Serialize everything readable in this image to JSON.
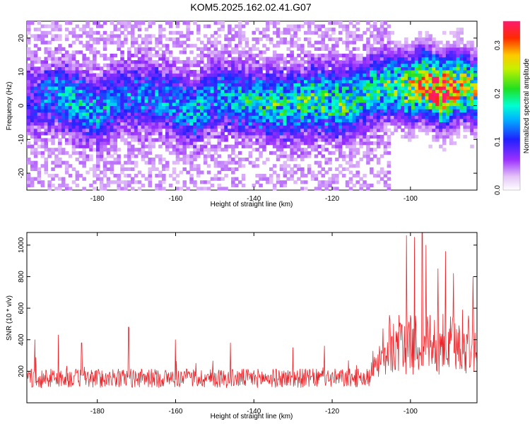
{
  "title": "KOM5.2025.162.02.41.G07",
  "colors": {
    "snr_line": "#e8262b",
    "frame": "#000000",
    "background": "#ffffff"
  },
  "chart_data": [
    {
      "type": "heatmap",
      "title": "KOM5.2025.162.02.41.G07",
      "xlabel": "Height of straight line (km)",
      "ylabel": "Frequency (Hz)",
      "xlim": [
        -198,
        -83
      ],
      "ylim": [
        -25,
        25
      ],
      "x_ticks": [
        -180,
        -160,
        -140,
        -120,
        -100
      ],
      "x_tick_labels": [
        "-180",
        "-160",
        "-140",
        "-120",
        "-100"
      ],
      "y_ticks": [
        -20,
        -10,
        0,
        10,
        20
      ],
      "y_tick_labels": [
        "-20",
        "-10",
        "0",
        "10",
        "20"
      ],
      "colorbar": {
        "label": "Normalized spectral amplitude",
        "range": [
          0.0,
          0.35
        ],
        "ticks": [
          0.0,
          0.1,
          0.2,
          0.3
        ],
        "tick_labels": [
          "0.0",
          "0.1",
          "0.2",
          "0.3"
        ],
        "colormap": "rainbow (white→violet→blue→cyan→green→yellow→red→magenta)"
      },
      "ridge": [
        {
          "x": -195,
          "freq": 2,
          "amp": 0.09
        },
        {
          "x": -190,
          "freq": 3,
          "amp": 0.12
        },
        {
          "x": -185,
          "freq": 1,
          "amp": 0.13
        },
        {
          "x": -180,
          "freq": -2,
          "amp": 0.12
        },
        {
          "x": -175,
          "freq": 2,
          "amp": 0.1
        },
        {
          "x": -165,
          "freq": 3,
          "amp": 0.11
        },
        {
          "x": -155,
          "freq": -2,
          "amp": 0.13
        },
        {
          "x": -150,
          "freq": 3,
          "amp": 0.12
        },
        {
          "x": -140,
          "freq": 1,
          "amp": 0.15
        },
        {
          "x": -132,
          "freq": 0,
          "amp": 0.16
        },
        {
          "x": -125,
          "freq": 2,
          "amp": 0.17
        },
        {
          "x": -118,
          "freq": 1,
          "amp": 0.18
        },
        {
          "x": -112,
          "freq": 3,
          "amp": 0.15
        },
        {
          "x": -106,
          "freq": 6,
          "amp": 0.17
        },
        {
          "x": -100,
          "freq": 5,
          "amp": 0.24
        },
        {
          "x": -97,
          "freq": 7,
          "amp": 0.27
        },
        {
          "x": -92,
          "freq": 4,
          "amp": 0.33
        },
        {
          "x": -87,
          "freq": 6,
          "amp": 0.25
        },
        {
          "x": -83,
          "freq": 4,
          "amp": 0.22
        }
      ]
    },
    {
      "type": "line",
      "xlabel": "Height of straight line (km)",
      "ylabel": "SNR (10 * v/v)",
      "xlim": [
        -198,
        -83
      ],
      "ylim": [
        0,
        1080
      ],
      "x_ticks": [
        -180,
        -160,
        -140,
        -120,
        -100
      ],
      "x_tick_labels": [
        "-180",
        "-160",
        "-140",
        "-120",
        "-100"
      ],
      "y_ticks": [
        200,
        400,
        600,
        800,
        1000
      ],
      "y_tick_labels": [
        "200",
        "400",
        "600",
        "800",
        "1000"
      ],
      "segments": [
        {
          "x_start": -198,
          "x_end": -110,
          "base": 150,
          "spread": 60,
          "spikes": [
            [
              -196,
              400
            ],
            [
              -190,
              430
            ],
            [
              -184,
              380
            ],
            [
              -172,
              480
            ],
            [
              -160,
              400
            ],
            [
              -146,
              380
            ],
            [
              -130,
              350
            ],
            [
              -122,
              360
            ]
          ]
        },
        {
          "x_start": -110,
          "x_end": -106,
          "base": 250,
          "spread": 100,
          "spikes": [
            [
              -107,
              470
            ],
            [
              -105,
              500
            ]
          ]
        },
        {
          "x_start": -106,
          "x_end": -83,
          "base": 350,
          "spread": 190,
          "spikes": [
            [
              -101,
              1060
            ],
            [
              -99,
              1050
            ],
            [
              -97,
              1080
            ],
            [
              -96,
              1000
            ],
            [
              -93,
              850
            ],
            [
              -91,
              960
            ],
            [
              -89,
              820
            ],
            [
              -84,
              800
            ]
          ]
        }
      ]
    }
  ]
}
